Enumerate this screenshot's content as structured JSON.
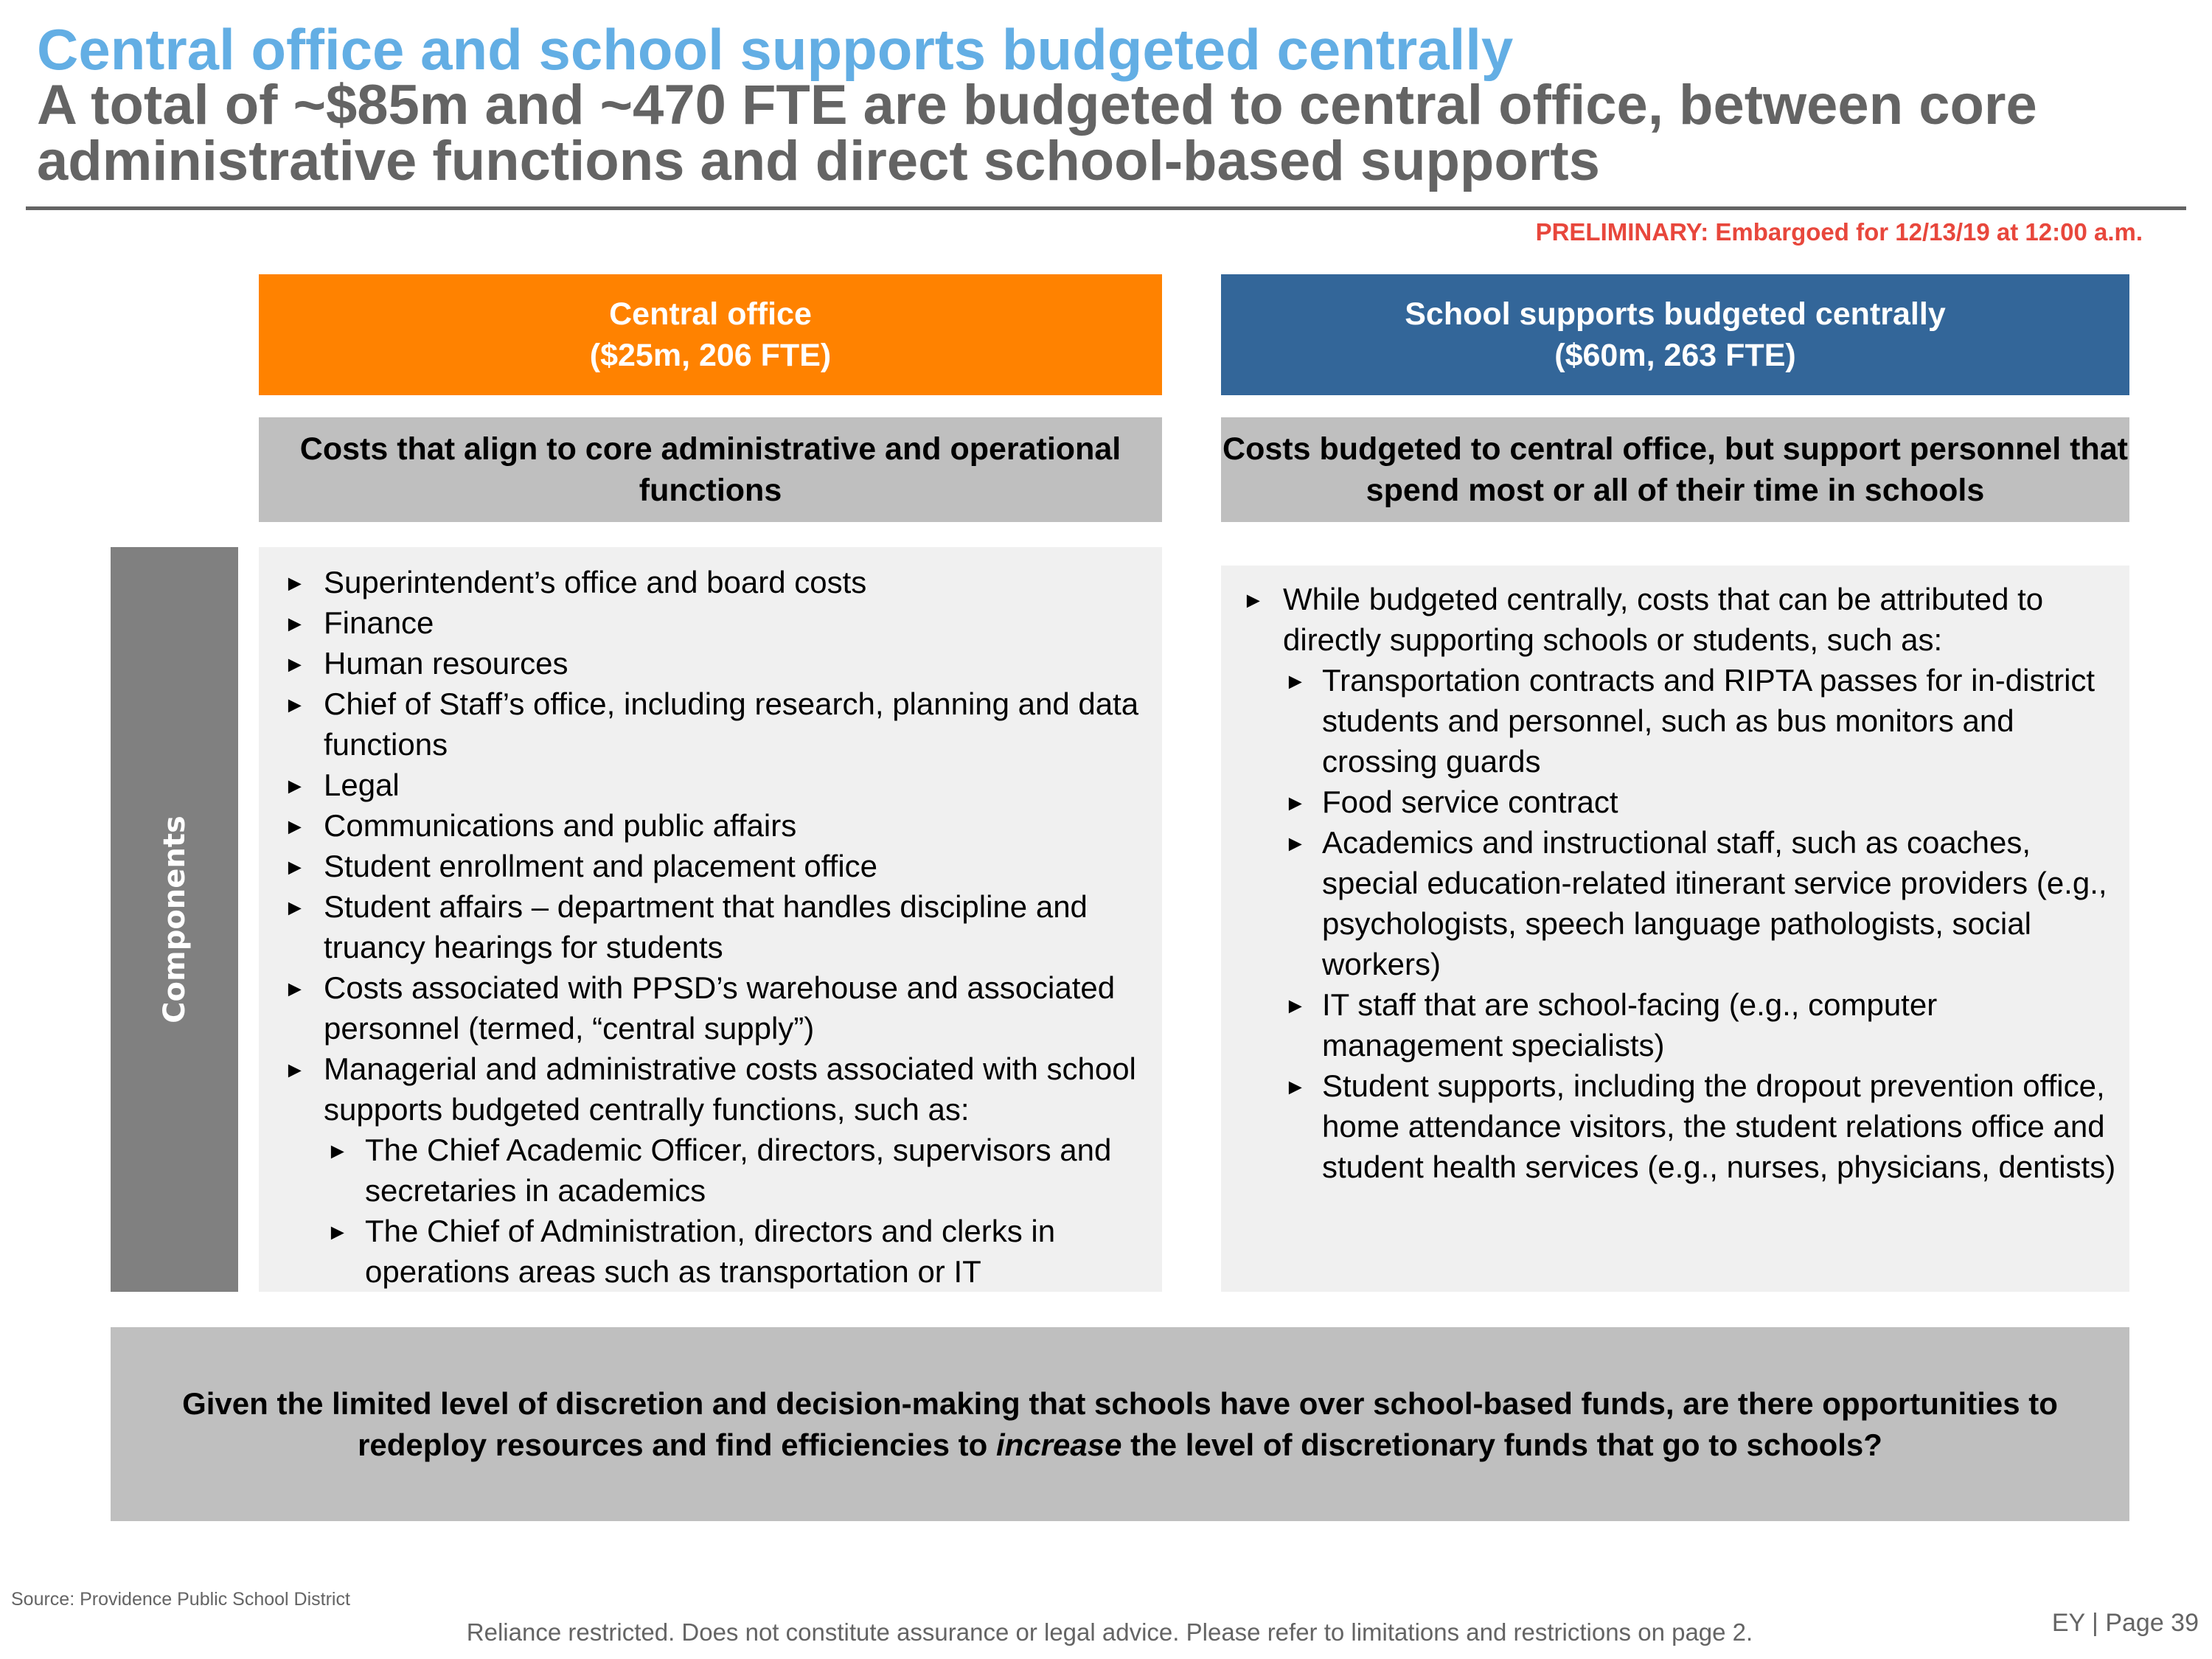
{
  "header": {
    "title": "Central office and school supports budgeted centrally",
    "subtitle": "A total of ~$85m and ~470 FTE are budgeted to central office, between core administrative functions and direct school-based supports",
    "preliminary_notice": "PRELIMINARY: Embargoed for 12/13/19 at 12:00 a.m."
  },
  "columns": [
    {
      "title_line1": "Central office",
      "title_line2": "($25m, 206 FTE)",
      "description": "Costs that align to core administrative and operational functions",
      "items": [
        {
          "text": "Superintendent’s office and board costs"
        },
        {
          "text": "Finance"
        },
        {
          "text": "Human resources"
        },
        {
          "text": "Chief of Staff’s office, including research, planning and data functions"
        },
        {
          "text": "Legal"
        },
        {
          "text": "Communications and public affairs"
        },
        {
          "text": "Student enrollment and placement office"
        },
        {
          "text": "Student affairs – department that handles discipline and truancy hearings for students"
        },
        {
          "text": "Costs associated with PPSD’s warehouse and associated personnel (termed, “central supply”)"
        },
        {
          "text": "Managerial and administrative costs associated with school supports budgeted centrally functions, such as:",
          "subitems": [
            "The Chief Academic Officer, directors, supervisors and secretaries in academics",
            "The Chief of Administration, directors and clerks in operations areas such as transportation or IT"
          ]
        }
      ]
    },
    {
      "title_line1": "School supports budgeted centrally",
      "title_line2": "($60m, 263 FTE)",
      "description": "Costs budgeted to central office, but support personnel that spend most or all of their time in schools",
      "items": [
        {
          "text": "While budgeted centrally, costs that can be attributed to directly supporting schools or students, such as:",
          "subitems": [
            "Transportation contracts and RIPTA passes for in-district students and personnel, such as bus monitors and crossing guards",
            "Food service contract",
            "Academics and instructional staff, such as coaches, special education-related itinerant service providers (e.g., psychologists, speech language pathologists, social workers)",
            "IT staff that are school-facing (e.g., computer management specialists)",
            "Student supports, including the dropout prevention office, home attendance visitors, the student relations office and student health services (e.g., nurses, physicians, dentists)"
          ]
        }
      ]
    }
  ],
  "sidebar": {
    "label": "Components"
  },
  "callout": {
    "before": "Given the limited level of discretion and decision-making that schools have over school-based funds, are there opportunities to redeploy resources and find efficiencies to ",
    "emphasis": "increase",
    "after": " the level of discretionary funds that go to schools?"
  },
  "footer": {
    "source": "Source: Providence Public School District",
    "disclaimer": "Reliance restricted. Does not constitute assurance or legal advice. Please refer to limitations and restrictions on page 2.",
    "page_label": "EY | Page 39"
  },
  "icons": {
    "bullet": "triangle-right-icon",
    "bullet_glyph": "►"
  },
  "colors": {
    "title": "#63AEE4",
    "subtitle": "#646464",
    "preliminary": "#E8473C",
    "central_office": "#FF8200",
    "school_supports": "#336699",
    "description_bg": "#BFBFBF",
    "panel_bg": "#F0F0F0",
    "sidebar_bg": "#808080"
  }
}
